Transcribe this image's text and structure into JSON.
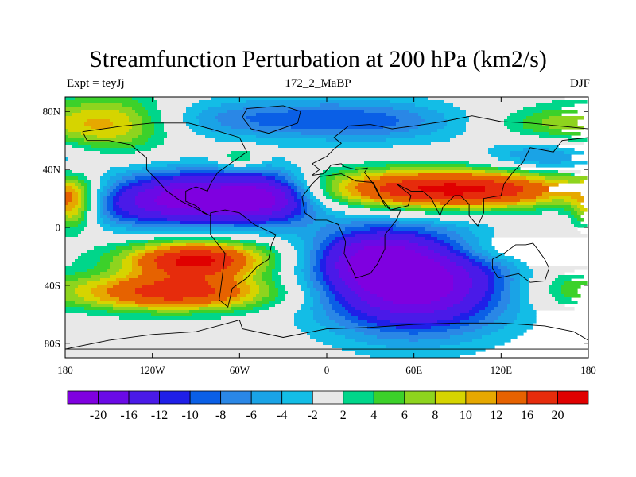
{
  "title": "Streamfunction Perturbation at 200 hPa (km2/s)",
  "subtitle_left": "Expt = teyJj",
  "subtitle_center": "172_2_MaBP",
  "subtitle_right": "DJF",
  "chart_data": {
    "type": "heatmap",
    "projection": "cylindrical-equidistant",
    "xlim": [
      -180,
      180
    ],
    "ylim": [
      -90,
      90
    ],
    "x_ticks": [
      {
        "value": -180,
        "label": "180"
      },
      {
        "value": -120,
        "label": "120W"
      },
      {
        "value": -60,
        "label": "60W"
      },
      {
        "value": 0,
        "label": "0"
      },
      {
        "value": 60,
        "label": "60E"
      },
      {
        "value": 120,
        "label": "120E"
      },
      {
        "value": 180,
        "label": "180"
      }
    ],
    "y_ticks": [
      {
        "value": 80,
        "label": "80N"
      },
      {
        "value": 40,
        "label": "40N"
      },
      {
        "value": 0,
        "label": "0"
      },
      {
        "value": -40,
        "label": "40S"
      },
      {
        "value": -80,
        "label": "80S"
      }
    ],
    "contour_levels": [
      -20,
      -16,
      -12,
      -10,
      -8,
      -6,
      -4,
      -2,
      2,
      4,
      6,
      8,
      10,
      12,
      16,
      20
    ],
    "level_labels": [
      "-20",
      "-16",
      "-12",
      "-10",
      "-8",
      "-6",
      "-4",
      "-2",
      "2",
      "4",
      "6",
      "8",
      "10",
      "12",
      "16",
      "20"
    ],
    "colors": [
      "#7f00e0",
      "#6a0ae6",
      "#4a1ae8",
      "#1f1fe8",
      "#0a5fe6",
      "#2a87e6",
      "#1aa3e6",
      "#13bde6",
      "#e8e8e8",
      "#00d68a",
      "#3cd12a",
      "#8ed41e",
      "#d6d400",
      "#e6a800",
      "#e66200",
      "#e62c0c",
      "#e00000"
    ],
    "features": [
      {
        "lon": -95,
        "lat": 20,
        "amp": -24,
        "slon": 55,
        "slat": 13
      },
      {
        "lon": -40,
        "lat": 22,
        "amp": -12,
        "slon": 22,
        "slat": 12
      },
      {
        "lon": 60,
        "lat": -38,
        "amp": -24,
        "slon": 45,
        "slat": 24
      },
      {
        "lon": 30,
        "lat": -20,
        "amp": -10,
        "slon": 25,
        "slat": 14
      },
      {
        "lon": -90,
        "lat": -22,
        "amp": 21,
        "slon": 35,
        "slat": 9
      },
      {
        "lon": -105,
        "lat": -45,
        "amp": 18,
        "slon": 50,
        "slat": 9
      },
      {
        "lon": 85,
        "lat": 26,
        "amp": 22,
        "slon": 75,
        "slat": 10
      },
      {
        "lon": -150,
        "lat": 72,
        "amp": 11,
        "slon": 30,
        "slat": 14
      },
      {
        "lon": -40,
        "lat": 75,
        "amp": -8,
        "slon": 55,
        "slat": 10
      },
      {
        "lon": 40,
        "lat": 73,
        "amp": -6,
        "slon": 40,
        "slat": 11
      },
      {
        "lon": 150,
        "lat": 48,
        "amp": -7,
        "slon": 30,
        "slat": 8
      },
      {
        "lon": 150,
        "lat": 72,
        "amp": 5,
        "slon": 25,
        "slat": 8
      },
      {
        "lon": -60,
        "lat": 48,
        "amp": 6,
        "slon": 10,
        "slat": 5
      },
      {
        "lon": -175,
        "lat": 15,
        "amp": 14,
        "slon": 12,
        "slat": 12
      },
      {
        "lon": 120,
        "lat": -15,
        "amp": 5,
        "slon": 30,
        "slat": 8
      },
      {
        "lon": 160,
        "lat": -40,
        "amp": 3,
        "slon": 25,
        "slat": 10
      }
    ]
  },
  "continent_outlines": [
    [
      [
        -168,
        66
      ],
      [
        -140,
        70
      ],
      [
        -120,
        72
      ],
      [
        -95,
        72
      ],
      [
        -80,
        68
      ],
      [
        -60,
        62
      ],
      [
        -55,
        52
      ],
      [
        -65,
        45
      ],
      [
        -75,
        38
      ],
      [
        -80,
        30
      ],
      [
        -82,
        25
      ],
      [
        -90,
        28
      ],
      [
        -97,
        25
      ],
      [
        -97,
        18
      ],
      [
        -90,
        15
      ],
      [
        -85,
        10
      ],
      [
        -80,
        8
      ],
      [
        -100,
        18
      ],
      [
        -110,
        25
      ],
      [
        -117,
        33
      ],
      [
        -124,
        40
      ],
      [
        -124,
        48
      ],
      [
        -135,
        57
      ],
      [
        -150,
        60
      ],
      [
        -165,
        60
      ],
      [
        -168,
        66
      ]
    ],
    [
      [
        -55,
        82
      ],
      [
        -30,
        84
      ],
      [
        -18,
        80
      ],
      [
        -20,
        72
      ],
      [
        -40,
        65
      ],
      [
        -52,
        68
      ],
      [
        -58,
        76
      ],
      [
        -55,
        82
      ]
    ],
    [
      [
        -80,
        10
      ],
      [
        -70,
        12
      ],
      [
        -60,
        10
      ],
      [
        -50,
        2
      ],
      [
        -35,
        -5
      ],
      [
        -38,
        -12
      ],
      [
        -40,
        -22
      ],
      [
        -48,
        -27
      ],
      [
        -55,
        -35
      ],
      [
        -65,
        -42
      ],
      [
        -68,
        -55
      ],
      [
        -74,
        -50
      ],
      [
        -72,
        -35
      ],
      [
        -70,
        -18
      ],
      [
        -80,
        -5
      ],
      [
        -80,
        10
      ]
    ],
    [
      [
        -10,
        36
      ],
      [
        -5,
        40
      ],
      [
        -10,
        44
      ],
      [
        0,
        49
      ],
      [
        5,
        54
      ],
      [
        10,
        58
      ],
      [
        5,
        62
      ],
      [
        15,
        70
      ],
      [
        30,
        71
      ],
      [
        45,
        68
      ],
      [
        60,
        70
      ],
      [
        80,
        73
      ],
      [
        100,
        77
      ],
      [
        120,
        73
      ],
      [
        140,
        72
      ],
      [
        160,
        70
      ],
      [
        180,
        68
      ],
      [
        180,
        62
      ],
      [
        162,
        60
      ],
      [
        156,
        52
      ],
      [
        140,
        55
      ],
      [
        135,
        45
      ],
      [
        128,
        38
      ],
      [
        122,
        30
      ],
      [
        120,
        22
      ],
      [
        108,
        20
      ],
      [
        108,
        10
      ],
      [
        104,
        1
      ],
      [
        98,
        8
      ],
      [
        98,
        16
      ],
      [
        92,
        22
      ],
      [
        88,
        22
      ],
      [
        80,
        14
      ],
      [
        78,
        8
      ],
      [
        72,
        20
      ],
      [
        66,
        25
      ],
      [
        58,
        25
      ],
      [
        52,
        28
      ],
      [
        48,
        30
      ],
      [
        58,
        22
      ],
      [
        56,
        15
      ],
      [
        44,
        12
      ],
      [
        36,
        22
      ],
      [
        32,
        30
      ],
      [
        26,
        38
      ],
      [
        28,
        41
      ],
      [
        20,
        40
      ],
      [
        12,
        42
      ],
      [
        10,
        44
      ],
      [
        3,
        43
      ],
      [
        -2,
        37
      ],
      [
        -10,
        36
      ]
    ],
    [
      [
        -17,
        21
      ],
      [
        -10,
        30
      ],
      [
        -5,
        35
      ],
      [
        10,
        37
      ],
      [
        20,
        32
      ],
      [
        32,
        31
      ],
      [
        35,
        25
      ],
      [
        40,
        15
      ],
      [
        44,
        12
      ],
      [
        51,
        12
      ],
      [
        48,
        5
      ],
      [
        40,
        -5
      ],
      [
        40,
        -15
      ],
      [
        35,
        -25
      ],
      [
        30,
        -32
      ],
      [
        20,
        -35
      ],
      [
        18,
        -30
      ],
      [
        12,
        -18
      ],
      [
        13,
        -10
      ],
      [
        8,
        2
      ],
      [
        0,
        5
      ],
      [
        -8,
        5
      ],
      [
        -15,
        10
      ],
      [
        -17,
        21
      ]
    ],
    [
      [
        114,
        -22
      ],
      [
        122,
        -18
      ],
      [
        130,
        -12
      ],
      [
        137,
        -12
      ],
      [
        142,
        -11
      ],
      [
        145,
        -15
      ],
      [
        150,
        -22
      ],
      [
        153,
        -28
      ],
      [
        150,
        -37
      ],
      [
        140,
        -38
      ],
      [
        132,
        -32
      ],
      [
        118,
        -35
      ],
      [
        114,
        -28
      ],
      [
        114,
        -22
      ]
    ],
    [
      [
        -180,
        -84
      ],
      [
        -150,
        -78
      ],
      [
        -120,
        -74
      ],
      [
        -90,
        -72
      ],
      [
        -60,
        -64
      ],
      [
        -58,
        -70
      ],
      [
        -30,
        -76
      ],
      [
        0,
        -70
      ],
      [
        30,
        -69
      ],
      [
        60,
        -67
      ],
      [
        90,
        -66
      ],
      [
        120,
        -66
      ],
      [
        150,
        -68
      ],
      [
        170,
        -72
      ],
      [
        180,
        -78
      ],
      [
        180,
        -84
      ],
      [
        -180,
        -84
      ]
    ]
  ]
}
